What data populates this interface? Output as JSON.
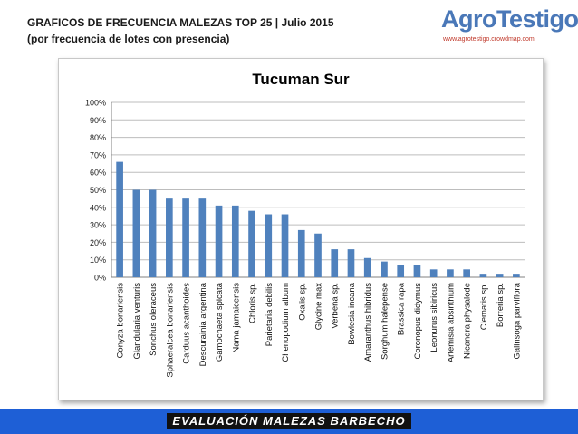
{
  "header": {
    "line1": "GRAFICOS DE FRECUENCIA MALEZAS TOP 25 | Julio 2015",
    "line2": "(por frecuencia de lotes con presencia)"
  },
  "logo": {
    "name": "AgroTestigo",
    "url": "www.agrotestigo.crowdmap.com"
  },
  "footer": {
    "label": "EVALUACIÓN MALEZAS BARBECHO"
  },
  "colors": {
    "bar": "#4f81bd",
    "footer_bg": "#1e5fd6",
    "logo": "#4a78b8"
  },
  "chart_data": {
    "type": "bar",
    "title": "Tucuman Sur",
    "xlabel": "",
    "ylabel": "",
    "ylim": [
      0,
      1
    ],
    "yticks": [
      "0%",
      "10%",
      "20%",
      "30%",
      "40%",
      "50%",
      "60%",
      "70%",
      "80%",
      "90%",
      "100%"
    ],
    "grid": true,
    "legend": "none",
    "categories": [
      "Conyza bonariensis",
      "Glandularia venturis",
      "Sonchus oleraceus",
      "Sphaeralcea bonariensis",
      "Carduus acanthoides",
      "Descurainia argentina",
      "Gamochaeta spicata",
      "Nama jamaicensis",
      "Chloris sp.",
      "Parietaria debilis",
      "Chenopodium album",
      "Oxalis sp.",
      "Glycine max",
      "Verbena sp.",
      "Bowlesia incana",
      "Amaranthus hibridus",
      "Sorghum halepense",
      "Brassica rapa",
      "Coronopus didymus",
      "Leonurus sibiricus",
      "Artemisia absinthium",
      "Nicandra physalode",
      "Clematis sp.",
      "Borreria sp.",
      "Galinsoga parviflora"
    ],
    "values": [
      0.66,
      0.5,
      0.5,
      0.45,
      0.45,
      0.45,
      0.41,
      0.41,
      0.38,
      0.36,
      0.36,
      0.27,
      0.25,
      0.16,
      0.16,
      0.11,
      0.09,
      0.07,
      0.07,
      0.045,
      0.045,
      0.045,
      0.02,
      0.02,
      0.02
    ]
  }
}
